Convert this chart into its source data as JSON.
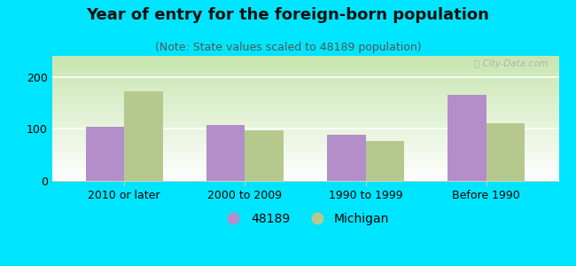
{
  "title": "Year of entry for the foreign-born population",
  "subtitle": "(Note: State values scaled to 48189 population)",
  "categories": [
    "2010 or later",
    "2000 to 2009",
    "1990 to 1999",
    "Before 1990"
  ],
  "values_48189": [
    104,
    108,
    88,
    165
  ],
  "values_michigan": [
    172,
    97,
    77,
    110
  ],
  "bar_color_48189": "#b48ec8",
  "bar_color_michigan": "#b5c98e",
  "background_outer": "#00e5ff",
  "background_inner_color": "#d8edcc",
  "ylim": [
    0,
    240
  ],
  "yticks": [
    0,
    100,
    200
  ],
  "bar_width": 0.32,
  "legend_label_1": "48189",
  "legend_label_2": "Michigan",
  "title_fontsize": 13,
  "subtitle_fontsize": 9,
  "tick_fontsize": 9,
  "legend_fontsize": 10,
  "grid_color": "#ffffff",
  "spine_color": "#cccccc"
}
